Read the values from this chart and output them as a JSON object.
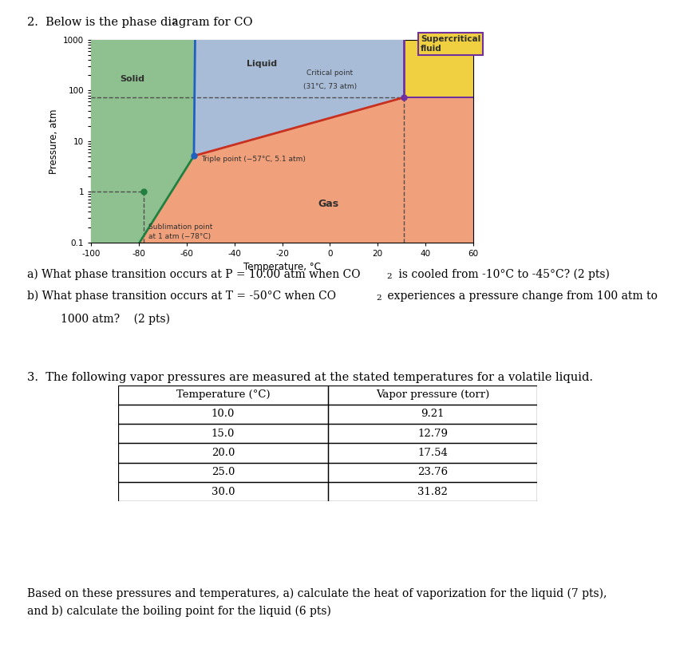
{
  "phase_diagram": {
    "xlim": [
      -100,
      60
    ],
    "ylim_log": [
      0.1,
      1000
    ],
    "xticks": [
      -100,
      -80,
      -60,
      -40,
      -20,
      0,
      20,
      40,
      60
    ],
    "yticks": [
      0.1,
      1,
      10,
      100,
      1000
    ],
    "xlabel": "Temperature, °C",
    "ylabel": "Pressure, atm",
    "triple_point": [
      -57,
      5.1
    ],
    "critical_point": [
      31,
      73
    ],
    "sublimation_point_T": -78,
    "sublimation_point_P": 1,
    "colors": {
      "solid": "#8fc08f",
      "liquid": "#a8bcd8",
      "gas": "#f0a07a",
      "supercritical": "#f0d040",
      "fusion_line": "#2060c0",
      "sublimation_line": "#208040",
      "vaporization_line": "#c83020",
      "triple_dot": "#2060c0",
      "sublimation_dot": "#208040",
      "critical_dot": "#7030a0",
      "dashed": "#505050",
      "supercritical_border": "#7030a0"
    }
  },
  "title1": "2.  Below is the phase diagram for CO",
  "title_sub": "2",
  "qa1": "a) What phase transition occurs at P = 10.00 atm when CO",
  "qa_sub": "2",
  "qa2": " is cooled from -10°C to -45°C? (2 pts)",
  "qb1": "b) What phase transition occurs at T = -50°C when CO",
  "qb_sub": "2",
  "qb2": " experiences a pressure change from 100 atm to",
  "qb3": "1000 atm?    (2 pts)",
  "q3": "3.  The following vapor pressures are measured at the stated temperatures for a volatile liquid.",
  "table_col1": "Temperature (°C)",
  "table_col2": "Vapor pressure (torr)",
  "table_rows": [
    [
      "10.0",
      "9.21"
    ],
    [
      "15.0",
      "12.79"
    ],
    [
      "20.0",
      "17.54"
    ],
    [
      "25.0",
      "23.76"
    ],
    [
      "30.0",
      "31.82"
    ]
  ],
  "footer1": "Based on these pressures and temperatures, a) calculate the heat of vaporization for the liquid (7 pts),",
  "footer2": "and b) calculate the boiling point for the liquid (6 pts)"
}
